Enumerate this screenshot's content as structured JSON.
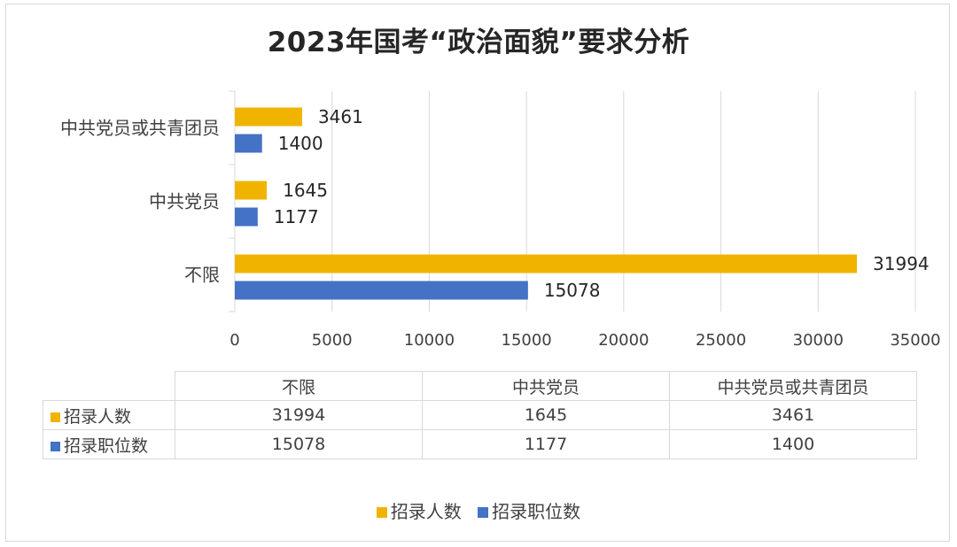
{
  "chart_data": {
    "type": "bar",
    "orientation": "horizontal",
    "title": "2023年国考“政治面貌”要求分析",
    "categories": [
      "不限",
      "中共党员",
      "中共党员或共青团员"
    ],
    "series": [
      {
        "name": "招录人数",
        "color": "#f0b400",
        "values": [
          31994,
          1645,
          3461
        ]
      },
      {
        "name": "招录职位数",
        "color": "#4472c4",
        "values": [
          15078,
          1177,
          1400
        ]
      }
    ],
    "xlim": [
      0,
      35000
    ],
    "xticks": [
      0,
      5000,
      10000,
      15000,
      20000,
      25000,
      30000,
      35000
    ],
    "grid": true,
    "legend_position": "bottom",
    "data_table": true
  }
}
